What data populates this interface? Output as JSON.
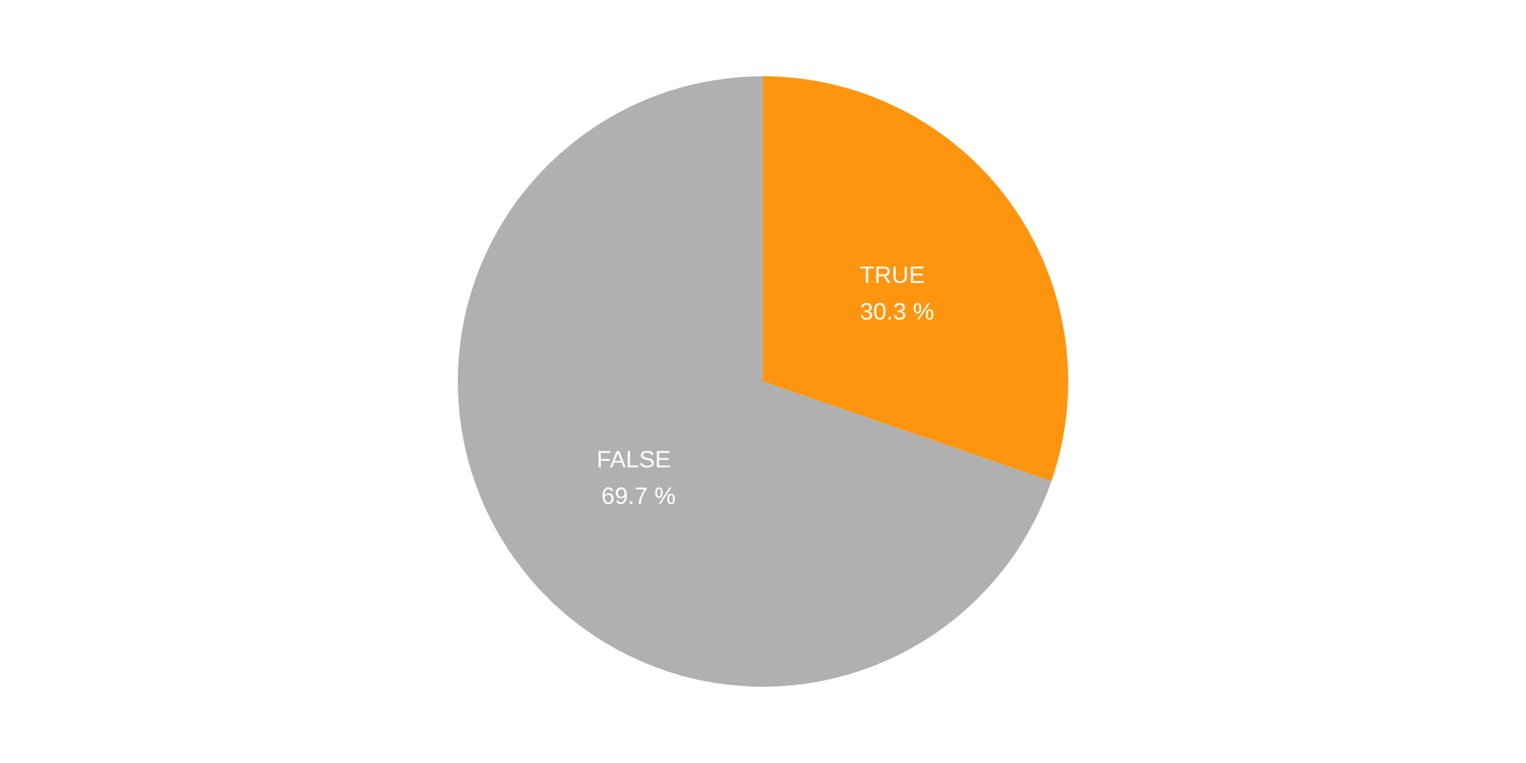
{
  "chart_data": {
    "type": "pie",
    "slices": [
      {
        "label": "TRUE",
        "value": 30.3,
        "value_text": "30.3 %",
        "color": "#ff950e"
      },
      {
        "label": "FALSE",
        "value": 69.7,
        "value_text": "69.7 %",
        "color": "#b0b0b0"
      }
    ],
    "start": "12 o'clock",
    "direction": "clockwise",
    "labels_inside": true,
    "legend": "none"
  }
}
